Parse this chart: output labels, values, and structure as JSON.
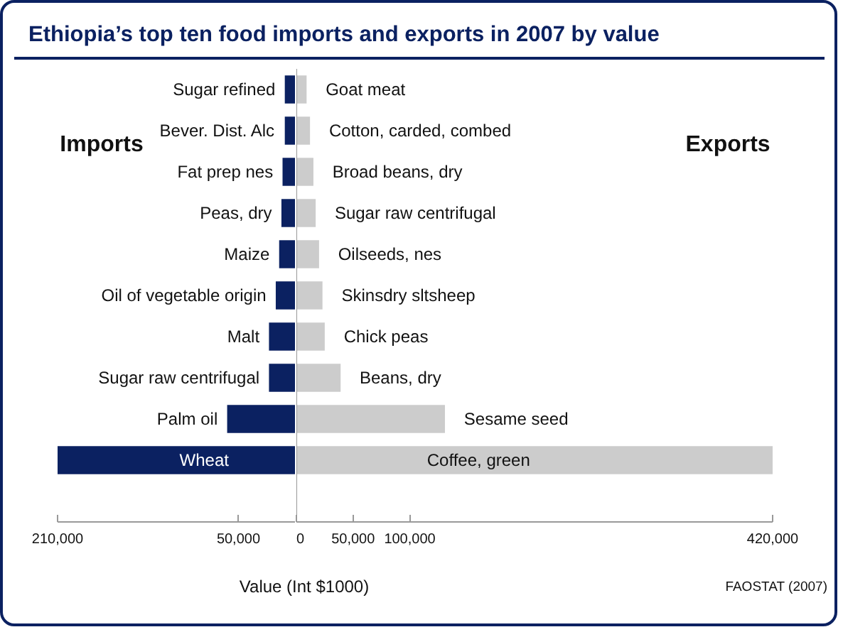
{
  "chart_data": [
    {
      "type": "bar",
      "orientation": "horizontal",
      "title": "Ethiopia’s top ten food imports and exports in 2007 by value",
      "xlabel": "Value (Int $1000)",
      "categories": [
        "Sugar refined",
        "Bever. Dist. Alc",
        "Fat prep nes",
        "Peas, dry",
        "Maize",
        "Oil of vegetable origin",
        "Malt",
        "Sugar raw centrifugal",
        "Palm oil",
        "Wheat"
      ],
      "series": [
        {
          "name": "Imports",
          "color": "#0b2161",
          "values": [
            9000,
            9000,
            11000,
            12000,
            14000,
            17000,
            23000,
            23000,
            60000,
            210000
          ]
        }
      ],
      "xlim": [
        210000,
        0
      ],
      "xticks": [
        {
          "value": 210000,
          "label": "210,000"
        },
        {
          "value": 50000,
          "label": "50,000"
        }
      ]
    },
    {
      "type": "bar",
      "orientation": "horizontal",
      "annotations": [
        "FAOSTAT (2007)"
      ],
      "categories": [
        "Goat meat",
        "Cotton, carded, combed",
        "Broad beans, dry",
        "Sugar raw centrifugal",
        "Oilseeds, nes",
        "Skinsdry sltsheep",
        "Chick peas",
        "Beans, dry",
        "Sesame seed",
        "Coffee, green"
      ],
      "series": [
        {
          "name": "Exports",
          "color": "#cccccc",
          "values": [
            9000,
            12000,
            15000,
            17000,
            20000,
            23000,
            25000,
            39000,
            131000,
            420000
          ]
        }
      ],
      "xlim": [
        0,
        420000
      ],
      "xticks": [
        0,
        {
          "value": 50000,
          "label": "50,000"
        },
        {
          "value": 100000,
          "label": "100,000"
        },
        {
          "value": 420000,
          "label": "420,000"
        }
      ]
    }
  ]
}
